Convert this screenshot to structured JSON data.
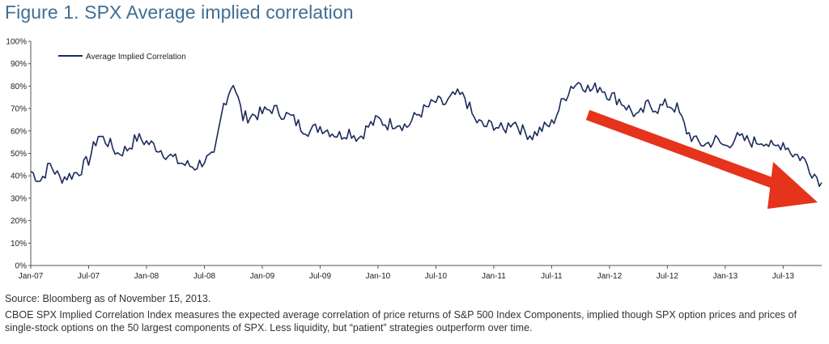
{
  "title": "Figure 1. SPX Average implied correlation",
  "source": "Source: Bloomberg as of November 15, 2013.",
  "caption": "CBOE SPX Implied Correlation Index measures the expected average correlation of price returns of S&P 500 Index Components, implied though SPX option prices and prices of single-stock options on the 50 largest components of SPX. Less liquidity, but “patient” strategies outperform over time.",
  "colors": {
    "line": "#1b2a5c",
    "arrow": "#e5331c",
    "title": "#3f6f95"
  },
  "chart_data": {
    "type": "line",
    "legend": "Average Implied Correlation",
    "legend_position": "top-left",
    "grid": false,
    "ylim": [
      0,
      100
    ],
    "y_ticks": [
      "0%",
      "10%",
      "20%",
      "30%",
      "40%",
      "50%",
      "60%",
      "70%",
      "80%",
      "90%",
      "100%"
    ],
    "x_ticks": [
      "Jan-07",
      "Jul-07",
      "Jan-08",
      "Jul-08",
      "Jan-09",
      "Jul-09",
      "Jan-10",
      "Jul-10",
      "Jan-11",
      "Jul-11",
      "Jan-12",
      "Jul-12",
      "Jan-13",
      "Jul-13"
    ],
    "annotation": "downward-trend-arrow",
    "series": [
      {
        "name": "Average Implied Correlation",
        "x": [
          "2007-01",
          "2007-02",
          "2007-03",
          "2007-04",
          "2007-05",
          "2007-06",
          "2007-07",
          "2007-08",
          "2007-09",
          "2007-10",
          "2007-11",
          "2007-12",
          "2008-01",
          "2008-02",
          "2008-03",
          "2008-04",
          "2008-05",
          "2008-06",
          "2008-07",
          "2008-08",
          "2008-09",
          "2008-10",
          "2008-11",
          "2008-12",
          "2009-01",
          "2009-02",
          "2009-03",
          "2009-04",
          "2009-05",
          "2009-06",
          "2009-07",
          "2009-08",
          "2009-09",
          "2009-10",
          "2009-11",
          "2009-12",
          "2010-01",
          "2010-02",
          "2010-03",
          "2010-04",
          "2010-05",
          "2010-06",
          "2010-07",
          "2010-08",
          "2010-09",
          "2010-10",
          "2010-11",
          "2010-12",
          "2011-01",
          "2011-02",
          "2011-03",
          "2011-04",
          "2011-05",
          "2011-06",
          "2011-07",
          "2011-08",
          "2011-09",
          "2011-10",
          "2011-11",
          "2011-12",
          "2012-01",
          "2012-02",
          "2012-03",
          "2012-04",
          "2012-05",
          "2012-06",
          "2012-07",
          "2012-08",
          "2012-09",
          "2012-10",
          "2012-11",
          "2012-12",
          "2013-01",
          "2013-02",
          "2013-03",
          "2013-04",
          "2013-05",
          "2013-06",
          "2013-07",
          "2013-08",
          "2013-09",
          "2013-10",
          "2013-11"
        ],
        "values": [
          42,
          38,
          45,
          39,
          40,
          42,
          47,
          58,
          55,
          50,
          52,
          57,
          55,
          53,
          50,
          47,
          45,
          44,
          47,
          48,
          72,
          82,
          66,
          67,
          68,
          70,
          68,
          66,
          62,
          60,
          62,
          60,
          58,
          60,
          57,
          62,
          65,
          63,
          64,
          62,
          67,
          70,
          73,
          72,
          76,
          75,
          65,
          62,
          63,
          60,
          65,
          60,
          58,
          61,
          63,
          72,
          80,
          82,
          78,
          80,
          76,
          74,
          70,
          66,
          72,
          70,
          72,
          70,
          60,
          55,
          54,
          56,
          53,
          57,
          56,
          55,
          56,
          52,
          55,
          50,
          48,
          42,
          37
        ]
      }
    ]
  }
}
